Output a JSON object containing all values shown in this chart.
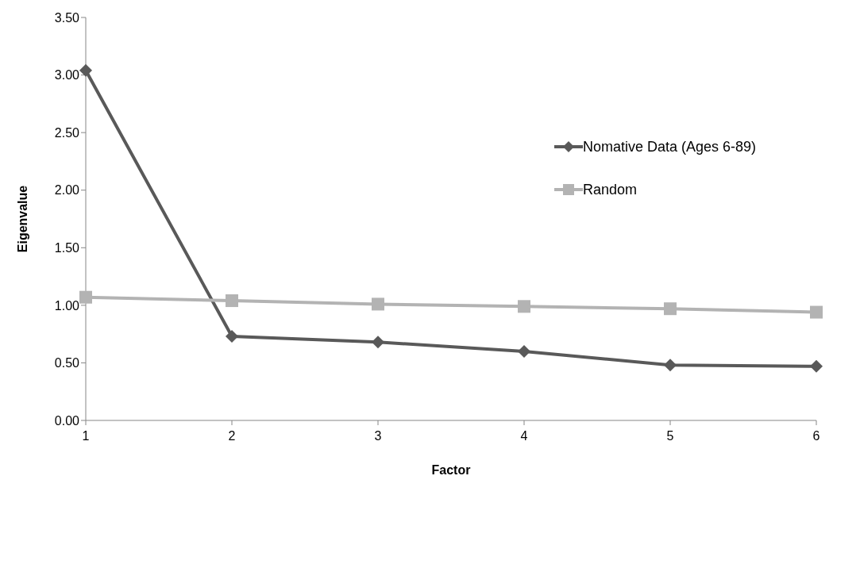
{
  "chart_data": {
    "type": "line",
    "xlabel": "Factor",
    "ylabel": "Eigenvalue",
    "categories": [
      "1",
      "2",
      "3",
      "4",
      "5",
      "6"
    ],
    "series": [
      {
        "name": "Nomative Data (Ages 6-89)",
        "color": "#595959",
        "marker": "diamond",
        "values": [
          3.04,
          0.73,
          0.68,
          0.6,
          0.48,
          0.47
        ]
      },
      {
        "name": "Random",
        "color": "#b3b3b3",
        "marker": "square",
        "values": [
          1.07,
          1.04,
          1.01,
          0.99,
          0.97,
          0.94
        ]
      }
    ],
    "ylim": [
      0,
      3.5
    ],
    "yticks": [
      {
        "value": 0,
        "label": "0.00"
      },
      {
        "value": 0.5,
        "label": "0.50"
      },
      {
        "value": 1,
        "label": "1.00"
      },
      {
        "value": 1.5,
        "label": "1.50"
      },
      {
        "value": 2,
        "label": "2.00"
      },
      {
        "value": 2.5,
        "label": "2.50"
      },
      {
        "value": 3,
        "label": "3.00"
      },
      {
        "value": 3.5,
        "label": "3.50"
      }
    ],
    "grid": false,
    "legend": "right",
    "line_style": "solid"
  }
}
